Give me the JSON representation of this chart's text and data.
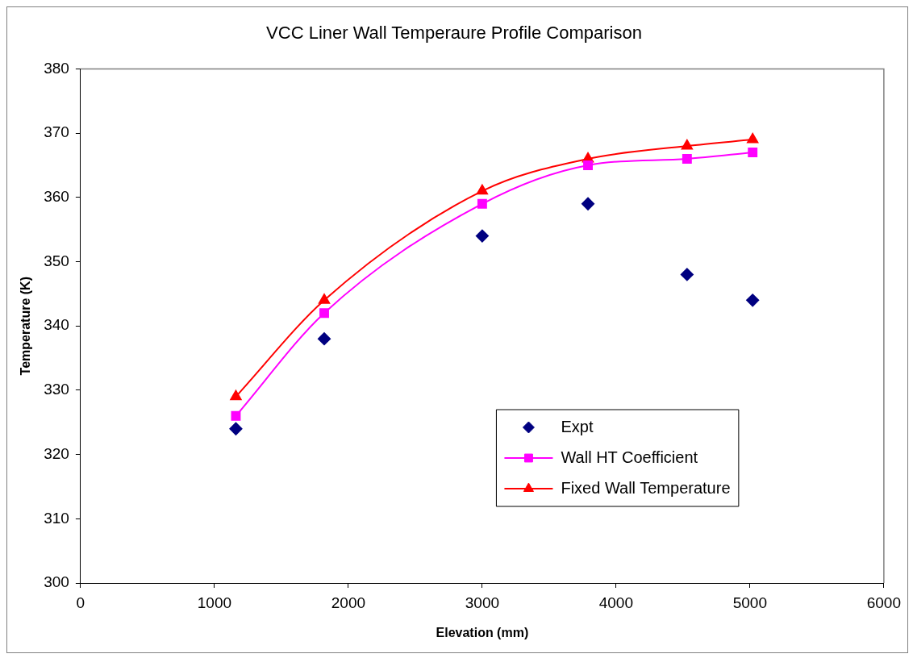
{
  "chart_data": {
    "type": "line",
    "title": "VCC Liner Wall Temperaure Profile Comparison",
    "xlabel": "Elevation (mm)",
    "ylabel": "Temperature (K)",
    "xlim": [
      0,
      6000
    ],
    "xticks": [
      0,
      1000,
      2000,
      3000,
      4000,
      5000,
      6000
    ],
    "ylim": [
      300,
      380
    ],
    "yticks": [
      300,
      310,
      320,
      330,
      340,
      350,
      360,
      370,
      380
    ],
    "grid": false,
    "legend": "bottom right",
    "series": [
      {
        "name": "Expt",
        "type": "scatter",
        "marker": "diamond",
        "color": "#000080",
        "x": [
          1160,
          1820,
          3000,
          3790,
          4530,
          5020
        ],
        "values": [
          324,
          338,
          354,
          359,
          348,
          344
        ]
      },
      {
        "name": "Wall HT Coefficient",
        "type": "line",
        "marker": "square",
        "color": "#ff00ff",
        "x": [
          1160,
          1820,
          3000,
          3790,
          4530,
          5020
        ],
        "values": [
          326,
          342,
          359,
          365,
          366,
          367
        ]
      },
      {
        "name": "Fixed Wall Temperature",
        "type": "line",
        "marker": "triangle",
        "color": "#ff0000",
        "x": [
          1160,
          1820,
          3000,
          3790,
          4530,
          5020
        ],
        "values": [
          329,
          344,
          361,
          366,
          368,
          369
        ]
      }
    ]
  }
}
